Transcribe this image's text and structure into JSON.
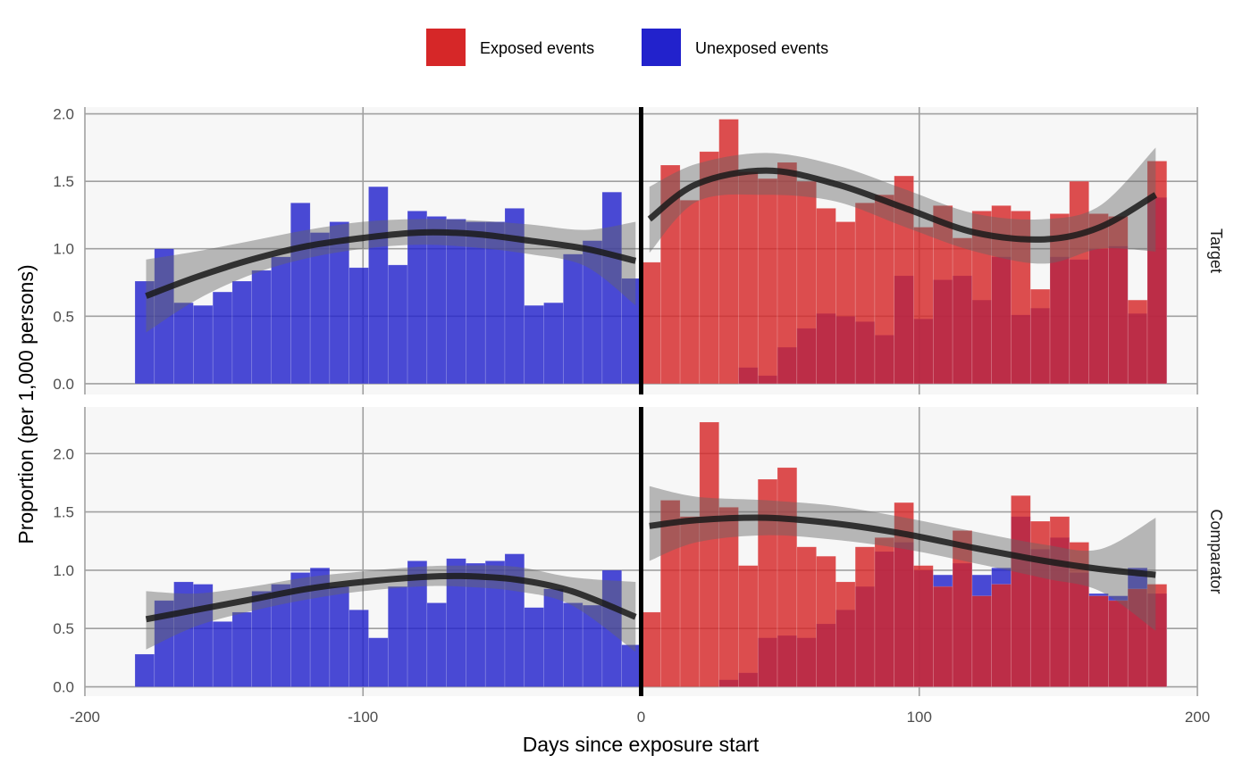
{
  "chart_data": {
    "type": "bar",
    "xlabel": "Days since exposure start",
    "ylabel": "Proportion (per 1,000 persons)",
    "xlim": [
      -200,
      200
    ],
    "x_ticks": [
      -200,
      -100,
      0,
      100,
      200
    ],
    "legend_position": "top",
    "grid": true,
    "bin_width_days": 7,
    "colors": {
      "exposed": "#d62728",
      "unexposed": "#2222cc",
      "smooth_line": "#1a1a1a",
      "smooth_band": "#666666",
      "zero_line": "#000000",
      "panel_bg": "#f7f7f7",
      "grid": "#a0a0a0"
    },
    "legend": [
      {
        "key": "exposed",
        "label": "Exposed events"
      },
      {
        "key": "unexposed",
        "label": "Unexposed events"
      }
    ],
    "panels": [
      {
        "name": "Target",
        "ylim": [
          -0.08,
          2.05
        ],
        "y_ticks": [
          0.0,
          0.5,
          1.0,
          1.5,
          2.0
        ],
        "y_tick_labels": [
          "0.0",
          "0.5",
          "1.0",
          "1.5",
          "2.0"
        ],
        "unexposed_bins": [
          {
            "start": -182,
            "value": 0.76
          },
          {
            "start": -175,
            "value": 1.0
          },
          {
            "start": -168,
            "value": 0.6
          },
          {
            "start": -161,
            "value": 0.58
          },
          {
            "start": -154,
            "value": 0.68
          },
          {
            "start": -147,
            "value": 0.76
          },
          {
            "start": -140,
            "value": 0.84
          },
          {
            "start": -133,
            "value": 0.94
          },
          {
            "start": -126,
            "value": 1.34
          },
          {
            "start": -119,
            "value": 1.12
          },
          {
            "start": -112,
            "value": 1.2
          },
          {
            "start": -105,
            "value": 0.86
          },
          {
            "start": -98,
            "value": 1.46
          },
          {
            "start": -91,
            "value": 0.88
          },
          {
            "start": -84,
            "value": 1.28
          },
          {
            "start": -77,
            "value": 1.24
          },
          {
            "start": -70,
            "value": 1.22
          },
          {
            "start": -63,
            "value": 1.2
          },
          {
            "start": -56,
            "value": 1.2
          },
          {
            "start": -49,
            "value": 1.3
          },
          {
            "start": -42,
            "value": 0.58
          },
          {
            "start": -35,
            "value": 0.6
          },
          {
            "start": -28,
            "value": 0.96
          },
          {
            "start": -21,
            "value": 1.06
          },
          {
            "start": -14,
            "value": 1.42
          },
          {
            "start": -7,
            "value": 0.78
          },
          {
            "start": 0,
            "value": 0.0
          },
          {
            "start": 7,
            "value": 0.0
          },
          {
            "start": 14,
            "value": 0.0
          },
          {
            "start": 21,
            "value": 0.0
          },
          {
            "start": 28,
            "value": 0.0
          },
          {
            "start": 35,
            "value": 0.12
          },
          {
            "start": 42,
            "value": 0.06
          },
          {
            "start": 49,
            "value": 0.27
          },
          {
            "start": 56,
            "value": 0.41
          },
          {
            "start": 63,
            "value": 0.52
          },
          {
            "start": 70,
            "value": 0.5
          },
          {
            "start": 77,
            "value": 0.46
          },
          {
            "start": 84,
            "value": 0.36
          },
          {
            "start": 91,
            "value": 0.8
          },
          {
            "start": 98,
            "value": 0.48
          },
          {
            "start": 105,
            "value": 0.77
          },
          {
            "start": 112,
            "value": 0.8
          },
          {
            "start": 119,
            "value": 0.62
          },
          {
            "start": 126,
            "value": 0.94
          },
          {
            "start": 133,
            "value": 0.51
          },
          {
            "start": 140,
            "value": 0.56
          },
          {
            "start": 147,
            "value": 0.94
          },
          {
            "start": 154,
            "value": 0.92
          },
          {
            "start": 161,
            "value": 1.0
          },
          {
            "start": 168,
            "value": 1.02
          },
          {
            "start": 175,
            "value": 0.52
          },
          {
            "start": 182,
            "value": 1.38
          }
        ],
        "exposed_bins": [
          {
            "start": 0,
            "value": 0.9
          },
          {
            "start": 7,
            "value": 1.62
          },
          {
            "start": 14,
            "value": 1.36
          },
          {
            "start": 21,
            "value": 1.72
          },
          {
            "start": 28,
            "value": 1.96
          },
          {
            "start": 35,
            "value": 1.57
          },
          {
            "start": 42,
            "value": 1.52
          },
          {
            "start": 49,
            "value": 1.64
          },
          {
            "start": 56,
            "value": 1.5
          },
          {
            "start": 63,
            "value": 1.3
          },
          {
            "start": 70,
            "value": 1.2
          },
          {
            "start": 77,
            "value": 1.34
          },
          {
            "start": 84,
            "value": 1.4
          },
          {
            "start": 91,
            "value": 1.54
          },
          {
            "start": 98,
            "value": 1.16
          },
          {
            "start": 105,
            "value": 1.32
          },
          {
            "start": 112,
            "value": 1.08
          },
          {
            "start": 119,
            "value": 1.28
          },
          {
            "start": 126,
            "value": 1.32
          },
          {
            "start": 133,
            "value": 1.28
          },
          {
            "start": 140,
            "value": 0.7
          },
          {
            "start": 147,
            "value": 1.26
          },
          {
            "start": 154,
            "value": 1.5
          },
          {
            "start": 161,
            "value": 1.26
          },
          {
            "start": 168,
            "value": 1.24
          },
          {
            "start": 175,
            "value": 0.62
          },
          {
            "start": 182,
            "value": 1.65
          }
        ],
        "smooth_pre": [
          {
            "x": -178,
            "y": 0.65,
            "lo": 0.38,
            "hi": 0.92
          },
          {
            "x": -160,
            "y": 0.79,
            "lo": 0.62,
            "hi": 0.98
          },
          {
            "x": -140,
            "y": 0.92,
            "lo": 0.81,
            "hi": 1.06
          },
          {
            "x": -120,
            "y": 1.02,
            "lo": 0.93,
            "hi": 1.14
          },
          {
            "x": -100,
            "y": 1.08,
            "lo": 1.0,
            "hi": 1.2
          },
          {
            "x": -80,
            "y": 1.12,
            "lo": 1.03,
            "hi": 1.22
          },
          {
            "x": -60,
            "y": 1.11,
            "lo": 1.01,
            "hi": 1.21
          },
          {
            "x": -40,
            "y": 1.06,
            "lo": 0.96,
            "hi": 1.18
          },
          {
            "x": -20,
            "y": 1.0,
            "lo": 0.87,
            "hi": 1.14
          },
          {
            "x": -2,
            "y": 0.91,
            "lo": 0.58,
            "hi": 1.2
          }
        ],
        "smooth_post": [
          {
            "x": 3,
            "y": 1.22,
            "lo": 0.97,
            "hi": 1.46
          },
          {
            "x": 20,
            "y": 1.48,
            "lo": 1.35,
            "hi": 1.63
          },
          {
            "x": 45,
            "y": 1.58,
            "lo": 1.4,
            "hi": 1.71
          },
          {
            "x": 70,
            "y": 1.48,
            "lo": 1.35,
            "hi": 1.62
          },
          {
            "x": 95,
            "y": 1.3,
            "lo": 1.16,
            "hi": 1.44
          },
          {
            "x": 120,
            "y": 1.12,
            "lo": 0.98,
            "hi": 1.26
          },
          {
            "x": 145,
            "y": 1.07,
            "lo": 0.89,
            "hi": 1.22
          },
          {
            "x": 165,
            "y": 1.16,
            "lo": 1.0,
            "hi": 1.32
          },
          {
            "x": 185,
            "y": 1.4,
            "lo": 0.98,
            "hi": 1.75
          }
        ]
      },
      {
        "name": "Comparator",
        "ylim": [
          -0.08,
          2.4
        ],
        "y_ticks": [
          0.0,
          0.5,
          1.0,
          1.5,
          2.0
        ],
        "y_tick_labels": [
          "0.0",
          "0.5",
          "1.0",
          "1.5",
          "2.0"
        ],
        "unexposed_bins": [
          {
            "start": -182,
            "value": 0.28
          },
          {
            "start": -175,
            "value": 0.74
          },
          {
            "start": -168,
            "value": 0.9
          },
          {
            "start": -161,
            "value": 0.88
          },
          {
            "start": -154,
            "value": 0.56
          },
          {
            "start": -147,
            "value": 0.64
          },
          {
            "start": -140,
            "value": 0.82
          },
          {
            "start": -133,
            "value": 0.88
          },
          {
            "start": -126,
            "value": 0.98
          },
          {
            "start": -119,
            "value": 1.02
          },
          {
            "start": -112,
            "value": 0.86
          },
          {
            "start": -105,
            "value": 0.66
          },
          {
            "start": -98,
            "value": 0.42
          },
          {
            "start": -91,
            "value": 0.86
          },
          {
            "start": -84,
            "value": 1.08
          },
          {
            "start": -77,
            "value": 0.72
          },
          {
            "start": -70,
            "value": 1.1
          },
          {
            "start": -63,
            "value": 1.06
          },
          {
            "start": -56,
            "value": 1.08
          },
          {
            "start": -49,
            "value": 1.14
          },
          {
            "start": -42,
            "value": 0.68
          },
          {
            "start": -35,
            "value": 0.84
          },
          {
            "start": -28,
            "value": 0.72
          },
          {
            "start": -21,
            "value": 0.7
          },
          {
            "start": -14,
            "value": 1.0
          },
          {
            "start": -7,
            "value": 0.36
          },
          {
            "start": 0,
            "value": 0.0
          },
          {
            "start": 7,
            "value": 0.0
          },
          {
            "start": 14,
            "value": 0.0
          },
          {
            "start": 21,
            "value": 0.0
          },
          {
            "start": 28,
            "value": 0.06
          },
          {
            "start": 35,
            "value": 0.12
          },
          {
            "start": 42,
            "value": 0.42
          },
          {
            "start": 49,
            "value": 0.44
          },
          {
            "start": 56,
            "value": 0.42
          },
          {
            "start": 63,
            "value": 0.54
          },
          {
            "start": 70,
            "value": 0.66
          },
          {
            "start": 77,
            "value": 0.86
          },
          {
            "start": 84,
            "value": 1.16
          },
          {
            "start": 91,
            "value": 1.24
          },
          {
            "start": 98,
            "value": 1.0
          },
          {
            "start": 105,
            "value": 0.96
          },
          {
            "start": 112,
            "value": 1.06
          },
          {
            "start": 119,
            "value": 0.96
          },
          {
            "start": 126,
            "value": 1.02
          },
          {
            "start": 133,
            "value": 1.46
          },
          {
            "start": 140,
            "value": 1.18
          },
          {
            "start": 147,
            "value": 1.28
          },
          {
            "start": 154,
            "value": 0.98
          },
          {
            "start": 161,
            "value": 0.8
          },
          {
            "start": 168,
            "value": 0.78
          },
          {
            "start": 175,
            "value": 1.02
          },
          {
            "start": 182,
            "value": 0.8
          }
        ],
        "exposed_bins": [
          {
            "start": 0,
            "value": 0.64
          },
          {
            "start": 7,
            "value": 1.6
          },
          {
            "start": 14,
            "value": 1.46
          },
          {
            "start": 21,
            "value": 2.27
          },
          {
            "start": 28,
            "value": 1.54
          },
          {
            "start": 35,
            "value": 1.04
          },
          {
            "start": 42,
            "value": 1.78
          },
          {
            "start": 49,
            "value": 1.88
          },
          {
            "start": 56,
            "value": 1.2
          },
          {
            "start": 63,
            "value": 1.12
          },
          {
            "start": 70,
            "value": 0.9
          },
          {
            "start": 77,
            "value": 1.2
          },
          {
            "start": 84,
            "value": 1.28
          },
          {
            "start": 91,
            "value": 1.58
          },
          {
            "start": 98,
            "value": 1.04
          },
          {
            "start": 105,
            "value": 0.86
          },
          {
            "start": 112,
            "value": 1.34
          },
          {
            "start": 119,
            "value": 0.78
          },
          {
            "start": 126,
            "value": 0.88
          },
          {
            "start": 133,
            "value": 1.64
          },
          {
            "start": 140,
            "value": 1.42
          },
          {
            "start": 147,
            "value": 1.46
          },
          {
            "start": 154,
            "value": 1.24
          },
          {
            "start": 161,
            "value": 0.78
          },
          {
            "start": 168,
            "value": 0.74
          },
          {
            "start": 175,
            "value": 0.84
          },
          {
            "start": 182,
            "value": 0.88
          }
        ],
        "smooth_pre": [
          {
            "x": -178,
            "y": 0.58,
            "lo": 0.32,
            "hi": 0.82
          },
          {
            "x": -160,
            "y": 0.66,
            "lo": 0.52,
            "hi": 0.8
          },
          {
            "x": -140,
            "y": 0.75,
            "lo": 0.65,
            "hi": 0.86
          },
          {
            "x": -120,
            "y": 0.84,
            "lo": 0.75,
            "hi": 0.94
          },
          {
            "x": -100,
            "y": 0.9,
            "lo": 0.82,
            "hi": 0.99
          },
          {
            "x": -80,
            "y": 0.94,
            "lo": 0.86,
            "hi": 1.03
          },
          {
            "x": -65,
            "y": 0.95,
            "lo": 0.86,
            "hi": 1.04
          },
          {
            "x": -45,
            "y": 0.92,
            "lo": 0.82,
            "hi": 1.03
          },
          {
            "x": -25,
            "y": 0.82,
            "lo": 0.7,
            "hi": 0.94
          },
          {
            "x": -2,
            "y": 0.6,
            "lo": 0.3,
            "hi": 0.9
          }
        ],
        "smooth_post": [
          {
            "x": 3,
            "y": 1.38,
            "lo": 1.08,
            "hi": 1.72
          },
          {
            "x": 20,
            "y": 1.43,
            "lo": 1.24,
            "hi": 1.63
          },
          {
            "x": 45,
            "y": 1.45,
            "lo": 1.3,
            "hi": 1.6
          },
          {
            "x": 70,
            "y": 1.4,
            "lo": 1.26,
            "hi": 1.55
          },
          {
            "x": 95,
            "y": 1.31,
            "lo": 1.18,
            "hi": 1.45
          },
          {
            "x": 120,
            "y": 1.19,
            "lo": 1.06,
            "hi": 1.33
          },
          {
            "x": 145,
            "y": 1.08,
            "lo": 0.93,
            "hi": 1.22
          },
          {
            "x": 165,
            "y": 1.01,
            "lo": 0.82,
            "hi": 1.18
          },
          {
            "x": 185,
            "y": 0.96,
            "lo": 0.48,
            "hi": 1.45
          }
        ]
      }
    ]
  }
}
